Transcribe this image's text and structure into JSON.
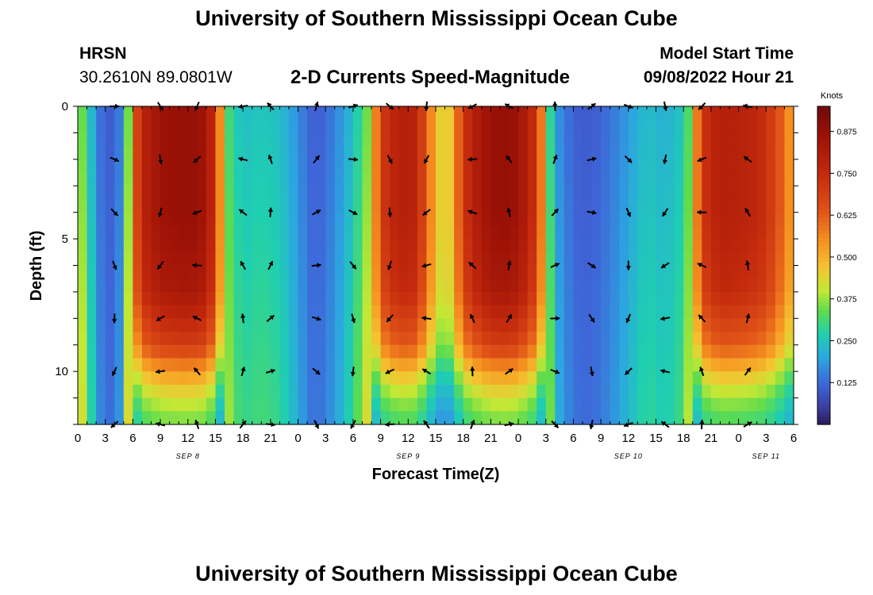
{
  "page": {
    "title": "University of Southern Mississippi Ocean Cube",
    "title_repeat": "University of Southern Mississippi Ocean Cube"
  },
  "header": {
    "station_code": "HRSN",
    "station_coords": "30.2610N  89.0801W",
    "chart_title": "2-D Currents Speed-Magnitude",
    "model_label": "Model Start Time",
    "model_time": "09/08/2022 Hour 21"
  },
  "chart_data": {
    "type": "heatmap",
    "title": "2-D Currents Speed-Magnitude",
    "xlabel": "Forecast Time(Z)",
    "ylabel": "Depth (ft)",
    "colorbar_label": "Knots",
    "xlim": [
      0,
      78
    ],
    "ylim": [
      0,
      12
    ],
    "x_tick_labels": [
      "0",
      "3",
      "6",
      "9",
      "12",
      "15",
      "18",
      "21",
      "0",
      "3",
      "6",
      "9",
      "12",
      "15",
      "18",
      "21",
      "0",
      "3",
      "6",
      "9",
      "12",
      "15",
      "18",
      "21",
      "0",
      "3",
      "6"
    ],
    "date_labels": [
      {
        "text": "SEP 8",
        "hour": 12
      },
      {
        "text": "SEP 9",
        "hour": 36
      },
      {
        "text": "SEP 10",
        "hour": 60
      },
      {
        "text": "SEP 11",
        "hour": 75
      }
    ],
    "y_ticks": [
      0,
      5,
      10
    ],
    "y_tick_labels": [
      "0",
      "5",
      "10"
    ],
    "colorbar_range": [
      0,
      0.95
    ],
    "colorbar_ticks": [
      0.125,
      0.25,
      0.375,
      0.5,
      0.625,
      0.75,
      0.875
    ],
    "colorbar_tick_labels": [
      "0.125",
      "0.250",
      "0.375",
      "0.500",
      "0.625",
      "0.750",
      "0.875"
    ],
    "speed_profile_surface": [
      [
        0,
        0.45
      ],
      [
        1,
        0.35
      ],
      [
        2,
        0.18
      ],
      [
        3,
        0.13
      ],
      [
        4,
        0.12
      ],
      [
        5,
        0.22
      ],
      [
        6,
        0.6
      ],
      [
        7,
        0.78
      ],
      [
        9,
        0.86
      ],
      [
        12,
        0.88
      ],
      [
        14,
        0.85
      ],
      [
        15,
        0.72
      ],
      [
        16,
        0.4
      ],
      [
        17,
        0.32
      ],
      [
        18,
        0.28
      ],
      [
        20,
        0.3
      ],
      [
        22,
        0.28
      ],
      [
        24,
        0.2
      ],
      [
        25,
        0.15
      ],
      [
        26,
        0.12
      ],
      [
        28,
        0.18
      ],
      [
        30,
        0.28
      ],
      [
        32,
        0.45
      ],
      [
        33,
        0.7
      ],
      [
        35,
        0.8
      ],
      [
        37,
        0.78
      ],
      [
        38,
        0.62
      ],
      [
        39,
        0.5
      ],
      [
        40,
        0.4
      ],
      [
        41,
        0.52
      ],
      [
        42,
        0.72
      ],
      [
        44,
        0.84
      ],
      [
        46,
        0.88
      ],
      [
        48,
        0.86
      ],
      [
        50,
        0.72
      ],
      [
        51,
        0.45
      ],
      [
        52,
        0.22
      ],
      [
        54,
        0.13
      ],
      [
        56,
        0.12
      ],
      [
        58,
        0.16
      ],
      [
        60,
        0.22
      ],
      [
        62,
        0.28
      ],
      [
        64,
        0.25
      ],
      [
        66,
        0.3
      ],
      [
        67,
        0.45
      ],
      [
        68,
        0.72
      ],
      [
        70,
        0.8
      ],
      [
        73,
        0.78
      ],
      [
        75,
        0.74
      ],
      [
        77,
        0.6
      ],
      [
        78,
        0.5
      ]
    ],
    "depth_factor_points": [
      [
        0,
        1.0
      ],
      [
        4,
        1.0
      ],
      [
        7,
        0.95
      ],
      [
        9,
        0.8
      ],
      [
        10,
        0.62
      ],
      [
        11,
        0.48
      ],
      [
        12,
        0.4
      ]
    ],
    "arrow_times": [
      4,
      9,
      13,
      18,
      21,
      26,
      30,
      34,
      38,
      43,
      47,
      52,
      56,
      60,
      64,
      68,
      73
    ],
    "arrow_depths": [
      0,
      2,
      4,
      6,
      8,
      10,
      12
    ]
  }
}
